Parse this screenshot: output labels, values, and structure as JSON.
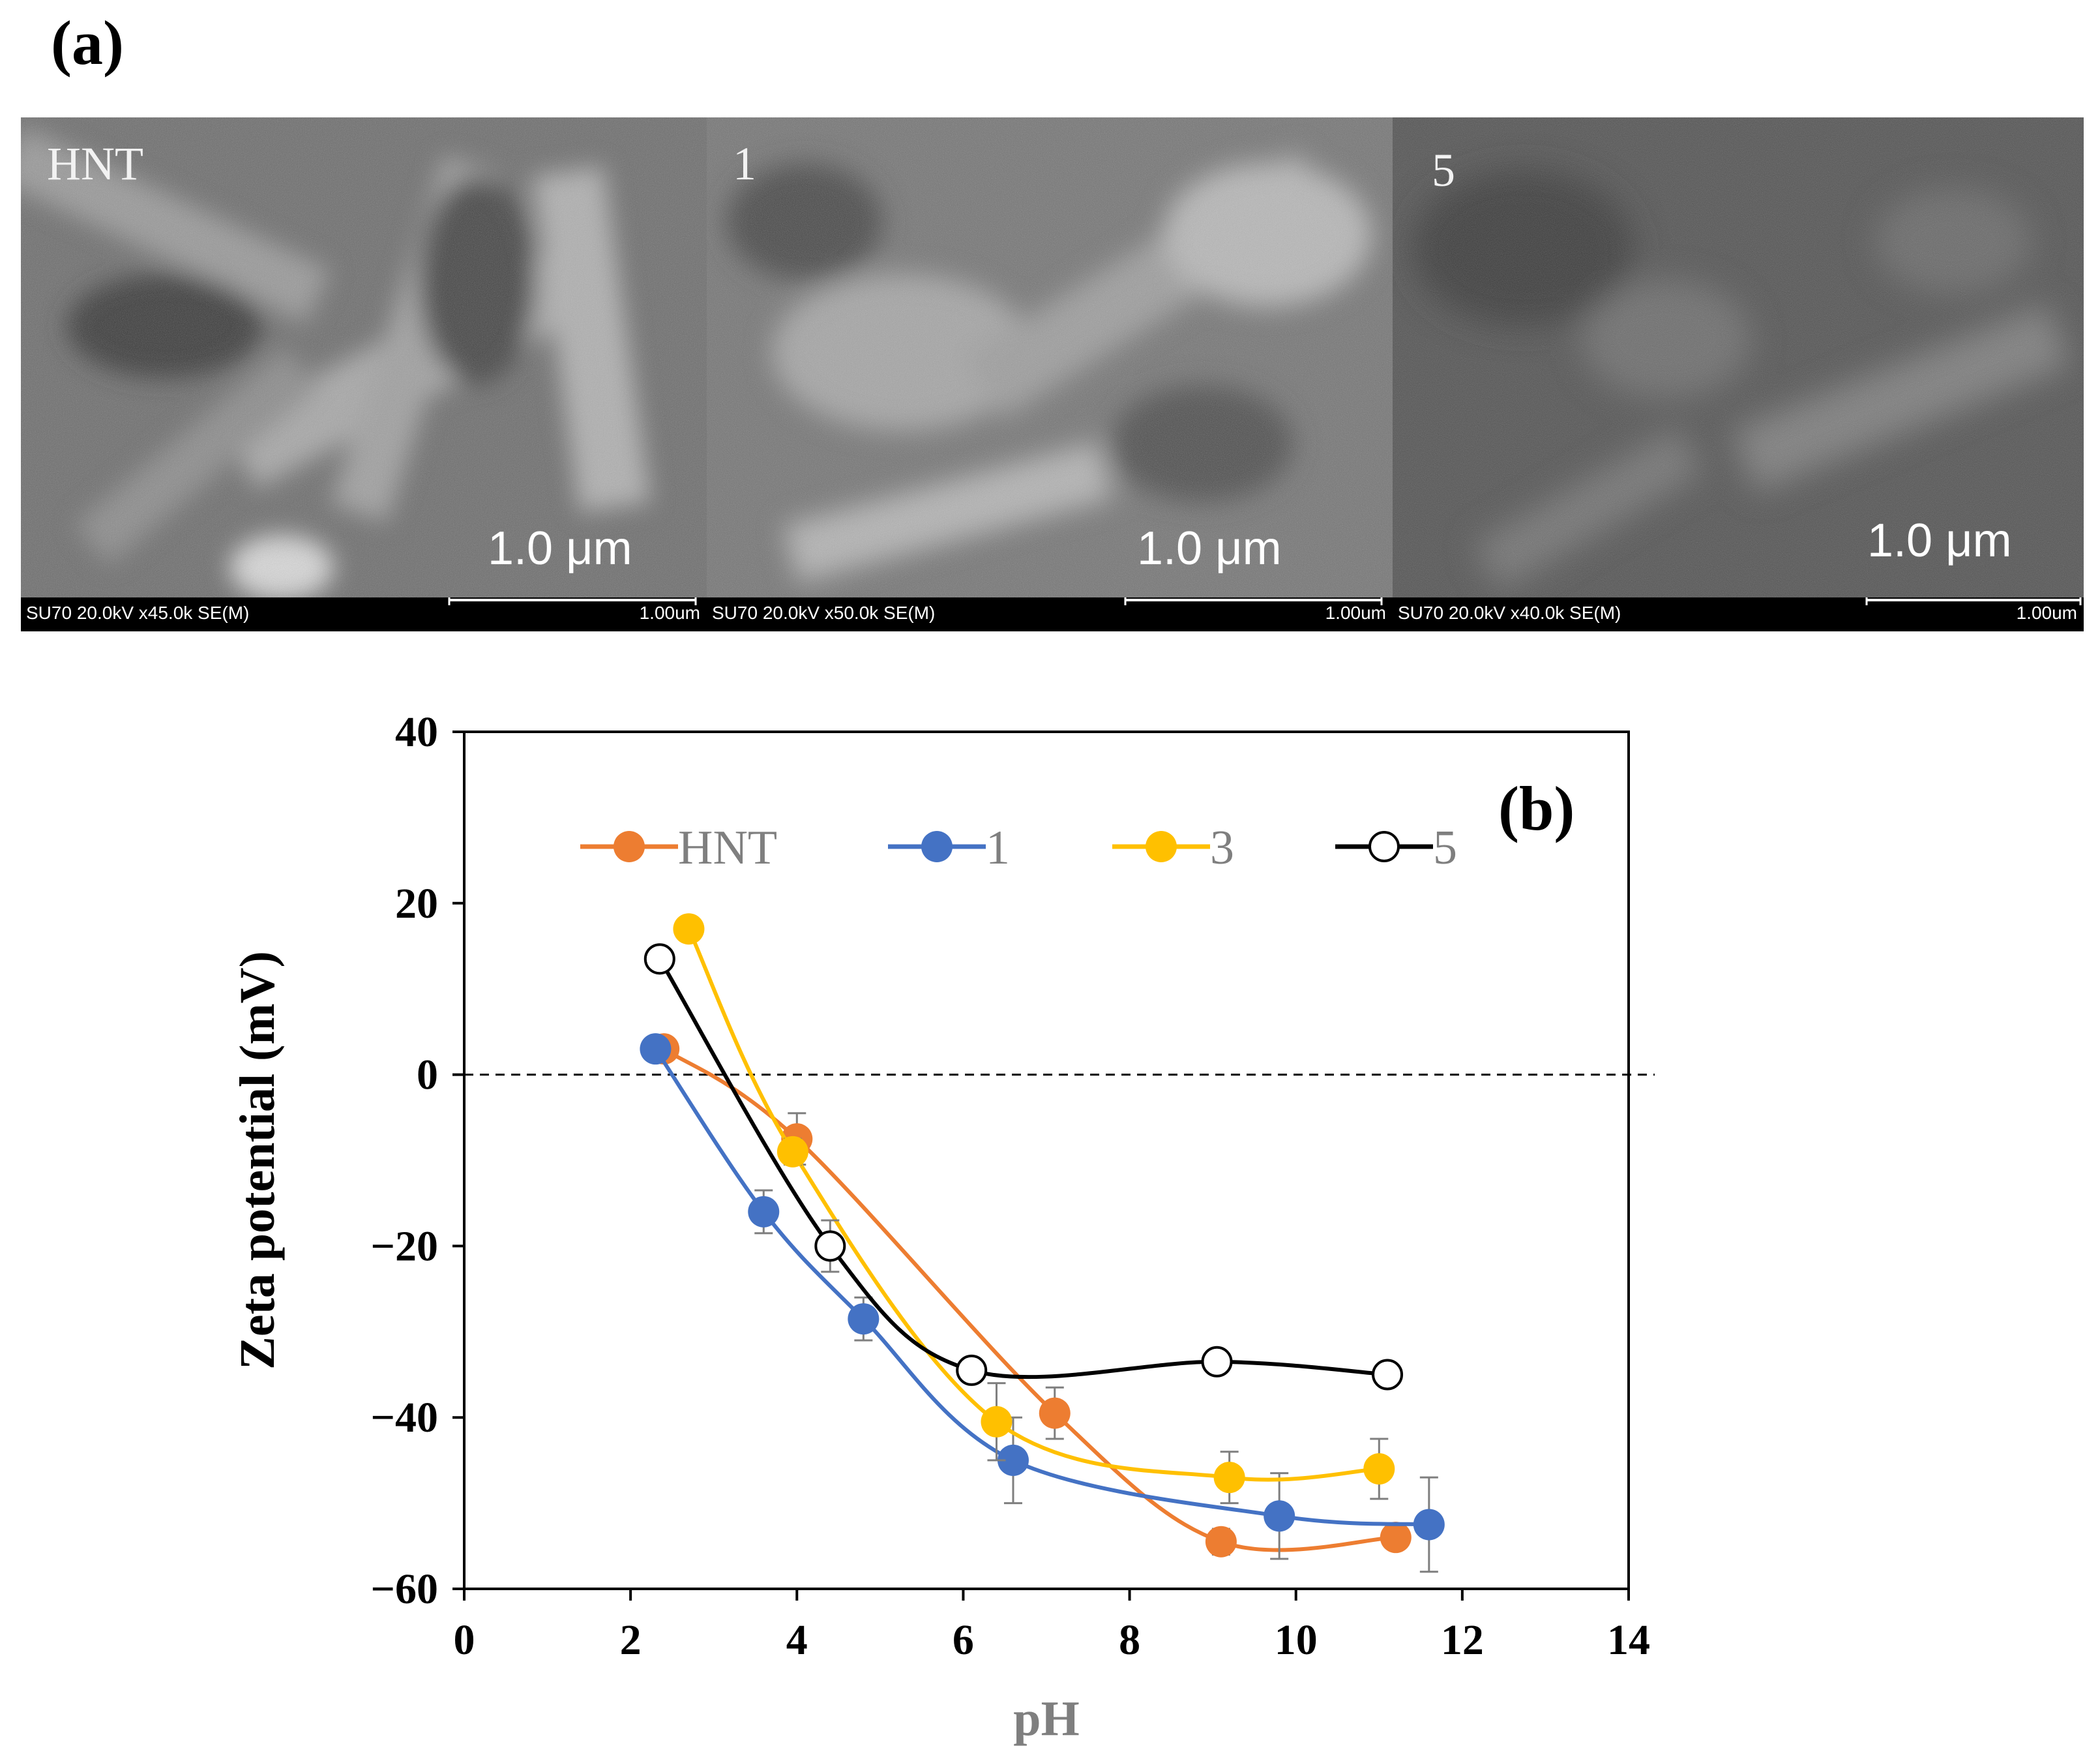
{
  "panel_a_label": "(a)",
  "sem_images": [
    {
      "tag": "HNT",
      "scale_text": "1.0 μm",
      "info": "SU70 20.0kV x45.0k SE(M)",
      "bar_label": "1.00um"
    },
    {
      "tag": "1",
      "scale_text": "1.0 μm",
      "info": "SU70 20.0kV x50.0k SE(M)",
      "bar_label": "1.00um"
    },
    {
      "tag": "5",
      "scale_text": "1.0 μm",
      "info": "SU70 20.0kV x40.0k SE(M)",
      "bar_label": "1.00um"
    }
  ],
  "chart_data": {
    "type": "line",
    "panel_label": "(b)",
    "xlabel": "pH",
    "ylabel": "Zeta potential (mV)",
    "xlim": [
      0,
      14
    ],
    "ylim": [
      -60,
      40
    ],
    "xticks": [
      0,
      2,
      4,
      6,
      8,
      10,
      12,
      14
    ],
    "yticks": [
      40,
      20,
      0,
      -20,
      -40,
      -60
    ],
    "ytick_labels": [
      "40",
      "20",
      "0",
      "−20",
      "−40",
      "−60"
    ],
    "reference_line_y": 0,
    "legend_position": "top",
    "series": [
      {
        "name": "HNT",
        "color": "#ED7D31",
        "marker": "filled",
        "x": [
          2.4,
          4.0,
          7.1,
          9.1,
          11.2
        ],
        "y": [
          3,
          -7.5,
          -39.5,
          -54.5,
          -54
        ],
        "err": [
          0,
          3,
          3,
          1.5,
          1
        ]
      },
      {
        "name": "1",
        "color": "#4472C4",
        "marker": "filled",
        "x": [
          2.3,
          3.6,
          4.8,
          6.6,
          9.8,
          11.6
        ],
        "y": [
          3,
          -16,
          -28.5,
          -45,
          -51.5,
          -52.5
        ],
        "err": [
          0,
          2.5,
          2.5,
          5,
          5,
          5.5
        ]
      },
      {
        "name": "3",
        "color": "#FFC000",
        "marker": "filled",
        "x": [
          2.7,
          3.95,
          6.4,
          9.2,
          11.0
        ],
        "y": [
          17,
          -9,
          -40.5,
          -47,
          -46
        ],
        "err": [
          0,
          1.5,
          4.5,
          3,
          3.5
        ]
      },
      {
        "name": "5",
        "color": "#000000",
        "marker": "open",
        "x": [
          2.35,
          4.4,
          6.1,
          9.05,
          11.1
        ],
        "y": [
          13.5,
          -20,
          -34.5,
          -33.5,
          -35
        ],
        "err": [
          0,
          3,
          0,
          0,
          0
        ]
      }
    ]
  }
}
